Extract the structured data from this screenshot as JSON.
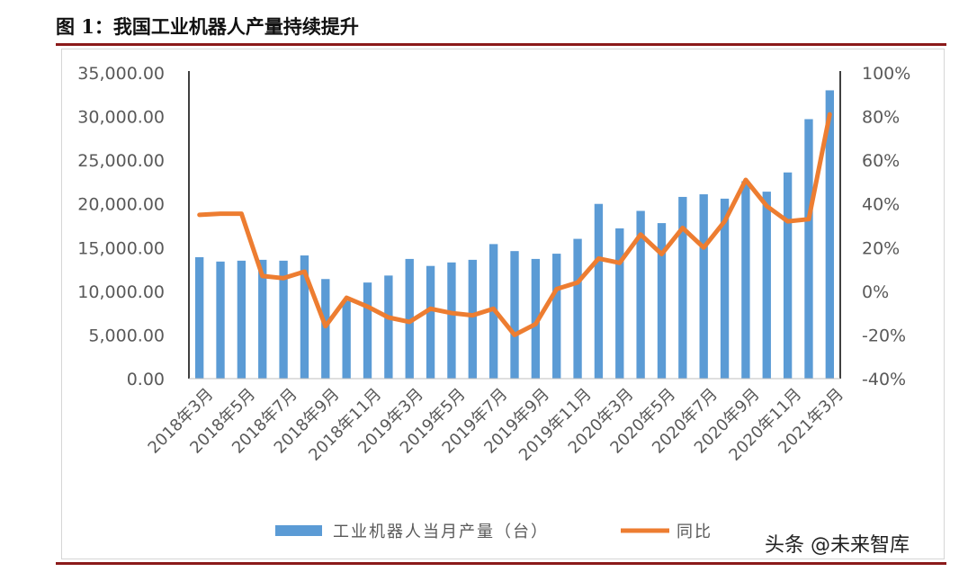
{
  "figure": {
    "title": "图 1：我国工业机器人产量持续提升"
  },
  "watermark": "头条 @未来智库",
  "colors": {
    "bar": "#5b9bd5",
    "line": "#ed7d31",
    "rule": "#8b1a1a",
    "axis": "#000000",
    "tick_text": "#595959"
  },
  "chart_data": {
    "type": "bar+line",
    "title": "",
    "categories": [
      "2018年3月",
      "2018年4月",
      "2018年5月",
      "2018年6月",
      "2018年7月",
      "2018年8月",
      "2018年9月",
      "2018年10月",
      "2018年11月",
      "2018年12月",
      "2019年3月",
      "2019年4月",
      "2019年5月",
      "2019年6月",
      "2019年7月",
      "2019年8月",
      "2019年9月",
      "2019年10月",
      "2019年11月",
      "2019年12月",
      "2020年3月",
      "2020年4月",
      "2020年5月",
      "2020年6月",
      "2020年7月",
      "2020年8月",
      "2020年9月",
      "2020年10月",
      "2020年11月",
      "2020年12月",
      "2021年3月"
    ],
    "x_tick_labels": [
      "2018年3月",
      "2018年5月",
      "2018年7月",
      "2018年9月",
      "2018年11月",
      "2019年3月",
      "2019年5月",
      "2019年7月",
      "2019年9月",
      "2019年11月",
      "2020年3月",
      "2020年5月",
      "2020年7月",
      "2020年9月",
      "2020年11月",
      "2021年3月"
    ],
    "series": [
      {
        "name": "工业机器人当月产量（台）",
        "type": "bar",
        "axis": "left",
        "values": [
          13900,
          13400,
          13500,
          13600,
          13500,
          14100,
          11400,
          8900,
          11000,
          11800,
          13700,
          12900,
          13300,
          13600,
          15400,
          14600,
          13700,
          14300,
          16000,
          20000,
          17200,
          19200,
          17800,
          20800,
          21100,
          20600,
          22600,
          21400,
          23600,
          29700,
          33000
        ]
      },
      {
        "name": "同比",
        "type": "line",
        "axis": "right",
        "values": [
          0.35,
          0.355,
          0.355,
          0.07,
          0.06,
          0.09,
          -0.16,
          -0.03,
          -0.07,
          -0.12,
          -0.14,
          -0.08,
          -0.1,
          -0.11,
          -0.08,
          -0.2,
          -0.15,
          0.01,
          0.04,
          0.15,
          0.13,
          0.26,
          0.17,
          0.29,
          0.2,
          0.32,
          0.51,
          0.39,
          0.32,
          0.33,
          0.81
        ]
      }
    ],
    "y_left": {
      "range": [
        0,
        35000
      ],
      "ticks": [
        "0.00",
        "5,000.00",
        "10,000.00",
        "15,000.00",
        "20,000.00",
        "25,000.00",
        "30,000.00",
        "35,000.00"
      ]
    },
    "y_right": {
      "range": [
        -0.4,
        1.0
      ],
      "ticks": [
        "-40%",
        "-20%",
        "0%",
        "20%",
        "40%",
        "60%",
        "80%",
        "100%"
      ]
    },
    "legend": {
      "position": "bottom",
      "items": [
        "工业机器人当月产量（台）",
        "同比"
      ]
    },
    "grid": false
  }
}
